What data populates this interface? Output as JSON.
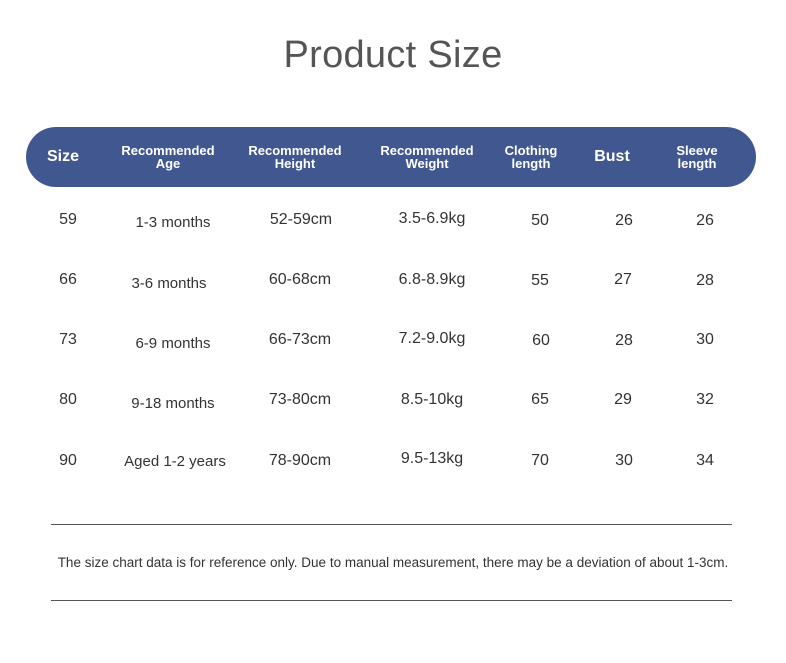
{
  "title": "Product Size",
  "headers": [
    {
      "line1": "Size",
      "line2": ""
    },
    {
      "line1": "Recommended",
      "line2": "Age"
    },
    {
      "line1": "Recommended",
      "line2": "Height"
    },
    {
      "line1": "Recommended",
      "line2": "Weight"
    },
    {
      "line1": "Clothing",
      "line2": "length"
    },
    {
      "line1": "Bust",
      "line2": ""
    },
    {
      "line1": "Sleeve",
      "line2": "length"
    }
  ],
  "rows": [
    {
      "size": "59",
      "age": "1-3 months",
      "height": "52-59cm",
      "weight": "3.5-6.9kg",
      "clothing_length": "50",
      "bust": "26",
      "sleeve_length": "26"
    },
    {
      "size": "66",
      "age": "3-6 months",
      "height": "60-68cm",
      "weight": "6.8-8.9kg",
      "clothing_length": "55",
      "bust": "27",
      "sleeve_length": "28"
    },
    {
      "size": "73",
      "age": "6-9 months",
      "height": "66-73cm",
      "weight": "7.2-9.0kg",
      "clothing_length": "60",
      "bust": "28",
      "sleeve_length": "30"
    },
    {
      "size": "80",
      "age": "9-18 months",
      "height": "73-80cm",
      "weight": "8.5-10kg",
      "clothing_length": "65",
      "bust": "29",
      "sleeve_length": "32"
    },
    {
      "size": "90",
      "age": "Aged 1-2 years",
      "height": "78-90cm",
      "weight": "9.5-13kg",
      "clothing_length": "70",
      "bust": "30",
      "sleeve_length": "34"
    }
  ],
  "note": "The size chart data is for reference only. Due to manual measurement, there may be a deviation of about 1-3cm.",
  "colors": {
    "header_bar": "#41578f",
    "header_text": "#ffffff",
    "body_text": "#333333",
    "title_text": "#555555"
  }
}
